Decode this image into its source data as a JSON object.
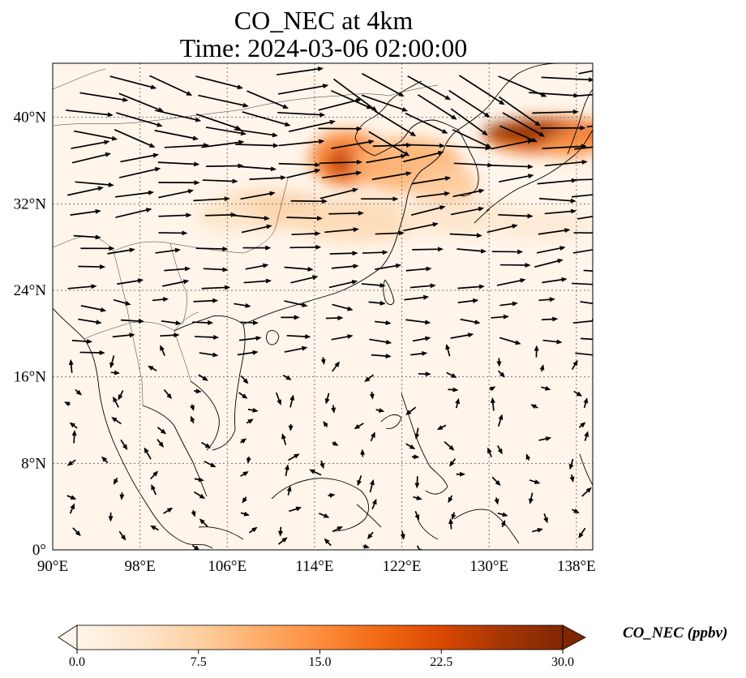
{
  "title": {
    "line1": "CO_NEC at 4km",
    "line2": "Time: 2024-03-06 02:00:00"
  },
  "map": {
    "lon_range": [
      90,
      139.5
    ],
    "lat_range": [
      0,
      45
    ],
    "lon_ticks": [
      {
        "value": 90,
        "label": "90°E"
      },
      {
        "value": 98,
        "label": "98°E"
      },
      {
        "value": 106,
        "label": "106°E"
      },
      {
        "value": 114,
        "label": "114°E"
      },
      {
        "value": 122,
        "label": "122°E"
      },
      {
        "value": 130,
        "label": "130°E"
      },
      {
        "value": 138,
        "label": "138°E"
      }
    ],
    "lat_ticks": [
      {
        "value": 0,
        "label": "0°"
      },
      {
        "value": 8,
        "label": "8°N"
      },
      {
        "value": 16,
        "label": "16°N"
      },
      {
        "value": 24,
        "label": "24°N"
      },
      {
        "value": 32,
        "label": "32°N"
      },
      {
        "value": 40,
        "label": "40°N"
      }
    ],
    "gridlines": true,
    "plumes": [
      {
        "lon": 117.0,
        "lat": 36.2,
        "rlon": 3.5,
        "rlat": 2.6,
        "value": 16
      },
      {
        "lon": 116.5,
        "lat": 35.8,
        "rlon": 1.4,
        "rlat": 1.3,
        "value": 24
      },
      {
        "lon": 122.5,
        "lat": 35.6,
        "rlon": 5.0,
        "rlat": 2.5,
        "value": 11
      },
      {
        "lon": 126.0,
        "lat": 33.8,
        "rlon": 3.0,
        "rlat": 1.8,
        "value": 8
      },
      {
        "lon": 110.0,
        "lat": 31.5,
        "rlon": 5.5,
        "rlat": 1.8,
        "value": 7
      },
      {
        "lon": 118.0,
        "lat": 30.5,
        "rlon": 6.0,
        "rlat": 2.0,
        "value": 6
      },
      {
        "lon": 127.0,
        "lat": 30.8,
        "rlon": 6.0,
        "rlat": 1.6,
        "value": 4
      },
      {
        "lon": 135.0,
        "lat": 30.0,
        "rlon": 4.5,
        "rlat": 1.4,
        "value": 3
      },
      {
        "lon": 135.5,
        "lat": 38.3,
        "rlon": 6.0,
        "rlat": 1.7,
        "value": 20
      },
      {
        "lon": 133.5,
        "lat": 38.7,
        "rlon": 4.0,
        "rlat": 0.9,
        "value": 30
      },
      {
        "lon": 137.5,
        "lat": 37.5,
        "rlon": 2.5,
        "rlat": 1.2,
        "value": 14
      },
      {
        "lon": 106.0,
        "lat": 30.8,
        "rlon": 3.0,
        "rlat": 1.4,
        "value": 4
      }
    ]
  },
  "colorbar": {
    "min": 0.0,
    "max": 30.0,
    "extend": "both",
    "colormap": [
      "#fff5eb",
      "#fee6ce",
      "#fdd0a2",
      "#fdae6b",
      "#fd8d3c",
      "#f16913",
      "#d94801",
      "#a63603",
      "#7f2704"
    ],
    "ticks": [
      "0.0",
      "7.5",
      "15.0",
      "22.5",
      "30.0"
    ],
    "label": "CO_NEC (ppbv)"
  }
}
